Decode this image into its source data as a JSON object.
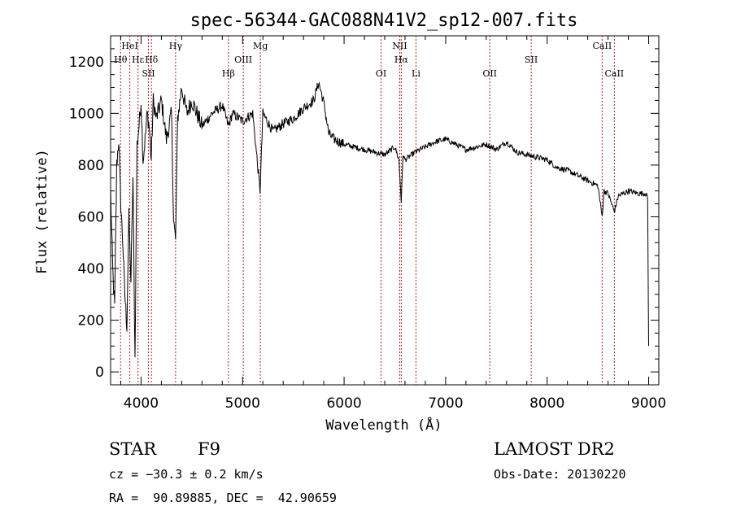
{
  "chart_data": {
    "type": "line",
    "title": "spec-56344-GAC088N41V2_sp12-007.fits",
    "xlabel": "Wavelength (Å)",
    "ylabel": "Flux (relative)",
    "xlim": [
      3700,
      9100
    ],
    "ylim": [
      -50,
      1300
    ],
    "xticks": [
      4000,
      5000,
      6000,
      7000,
      8000,
      9000
    ],
    "yticks": [
      0,
      200,
      400,
      600,
      800,
      1000,
      1200
    ],
    "series": [
      {
        "name": "spectrum",
        "x": [
          3700,
          3720,
          3740,
          3760,
          3780,
          3800,
          3820,
          3840,
          3860,
          3880,
          3900,
          3920,
          3940,
          3960,
          3980,
          4000,
          4020,
          4040,
          4060,
          4080,
          4100,
          4120,
          4150,
          4200,
          4250,
          4300,
          4320,
          4340,
          4360,
          4400,
          4450,
          4500,
          4600,
          4700,
          4800,
          4861,
          4900,
          5000,
          5100,
          5172,
          5200,
          5300,
          5400,
          5500,
          5600,
          5700,
          5750,
          5800,
          5850,
          5900,
          6000,
          6100,
          6200,
          6300,
          6400,
          6500,
          6540,
          6563,
          6580,
          6600,
          6700,
          6800,
          6900,
          7000,
          7100,
          7200,
          7300,
          7400,
          7500,
          7600,
          7700,
          7800,
          7900,
          8000,
          8100,
          8200,
          8300,
          8400,
          8500,
          8542,
          8560,
          8600,
          8662,
          8700,
          8800,
          8900,
          8980,
          8990,
          9000
        ],
        "y": [
          700,
          400,
          250,
          800,
          900,
          650,
          500,
          300,
          180,
          600,
          350,
          750,
          50,
          880,
          950,
          1050,
          820,
          900,
          1000,
          950,
          820,
          1050,
          980,
          1050,
          900,
          1000,
          600,
          500,
          980,
          1100,
          1000,
          1050,
          950,
          1000,
          1030,
          950,
          1000,
          970,
          1000,
          700,
          1000,
          930,
          960,
          980,
          1020,
          1050,
          1120,
          1040,
          920,
          900,
          880,
          870,
          860,
          850,
          840,
          870,
          820,
          660,
          840,
          820,
          850,
          870,
          890,
          900,
          880,
          860,
          870,
          880,
          860,
          890,
          850,
          840,
          830,
          820,
          790,
          780,
          760,
          740,
          720,
          600,
          700,
          690,
          620,
          680,
          700,
          690,
          690,
          660,
          100
        ]
      }
    ],
    "line_markers": [
      {
        "label": "Hθ",
        "x": 3798,
        "row": 1
      },
      {
        "label": "HeI",
        "x": 3889,
        "row": 0
      },
      {
        "label": "Hε",
        "x": 3970,
        "row": 1
      },
      {
        "label": "SII",
        "x": 4072,
        "row": 2
      },
      {
        "label": "Hδ",
        "x": 4102,
        "row": 1
      },
      {
        "label": "Hγ",
        "x": 4340,
        "row": 0
      },
      {
        "label": "Hβ",
        "x": 4861,
        "row": 2
      },
      {
        "label": "OIII",
        "x": 5007,
        "row": 1
      },
      {
        "label": "Mg",
        "x": 5175,
        "row": 0
      },
      {
        "label": "OI",
        "x": 6364,
        "row": 2
      },
      {
        "label": "NII",
        "x": 6548,
        "row": 0
      },
      {
        "label": "Hα",
        "x": 6563,
        "row": 1
      },
      {
        "label": "Li",
        "x": 6708,
        "row": 2
      },
      {
        "label": "OII",
        "x": 7435,
        "row": 2
      },
      {
        "label": "SII",
        "x": 7843,
        "row": 1
      },
      {
        "label": "CaII",
        "x": 8542,
        "row": 0
      },
      {
        "label": "CaII",
        "x": 8662,
        "row": 2
      }
    ]
  },
  "info": {
    "object_type": "STAR",
    "subclass": "F9",
    "survey": "LAMOST DR2",
    "cz": "cz = −30.3 ± 0.2 km/s",
    "obs_date": "Obs-Date: 20130220",
    "coords": "RA =  90.89885, DEC =  42.90659"
  },
  "colors": {
    "axis": "#000000",
    "spectrum": "#000000",
    "marker_line": "#b22222"
  }
}
